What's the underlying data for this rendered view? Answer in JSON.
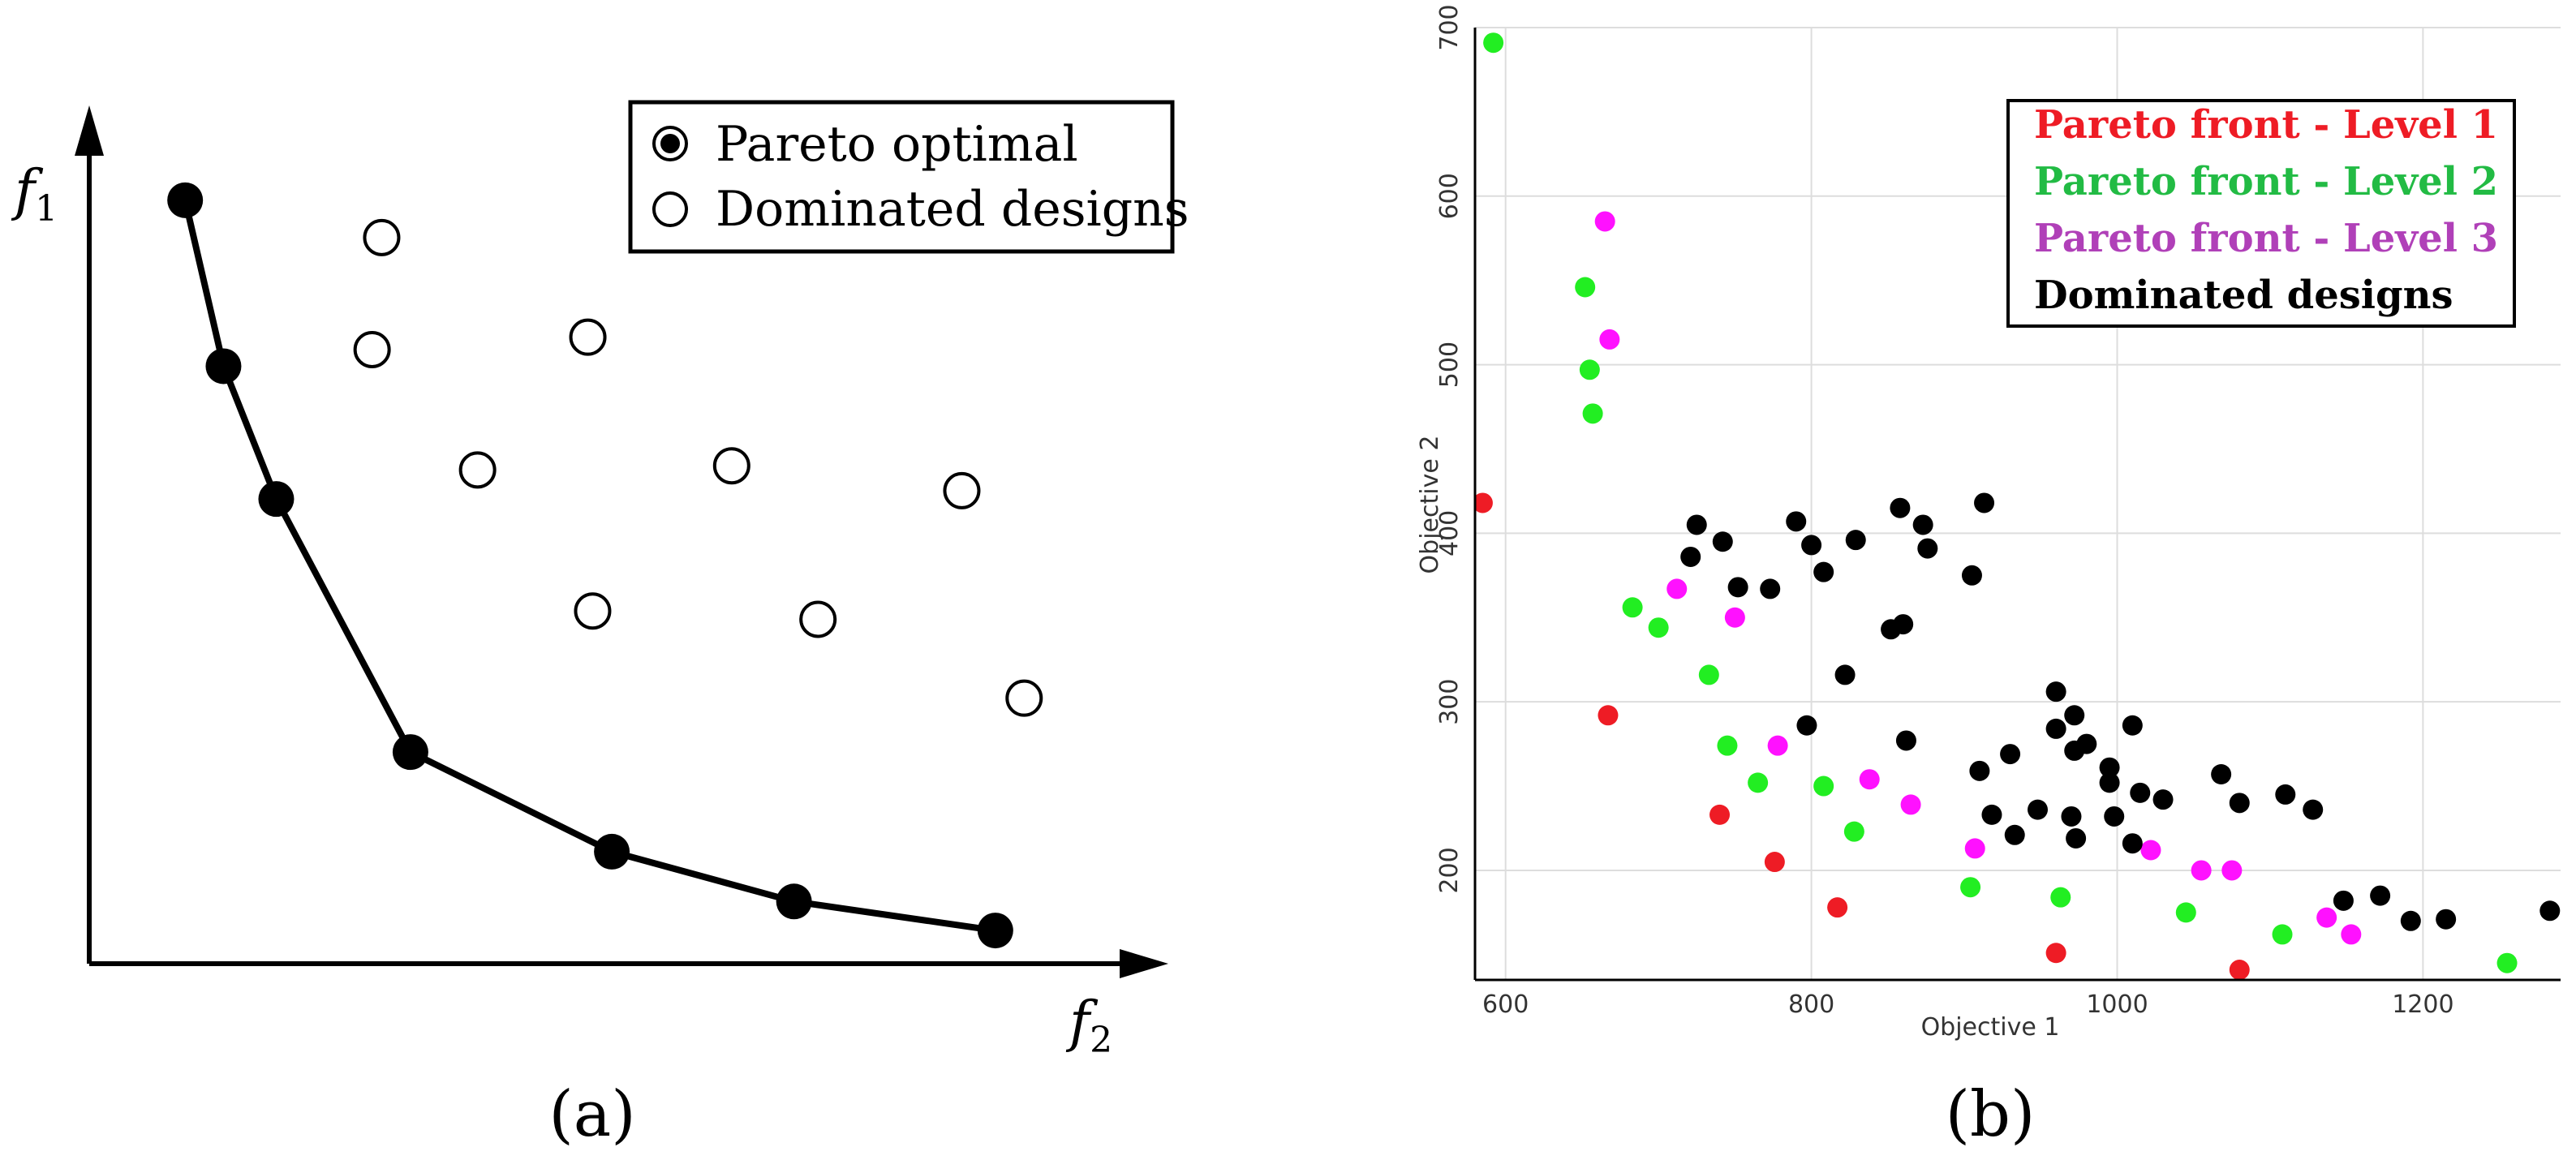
{
  "chart_data": [
    {
      "panel": "(a)",
      "type": "scatter",
      "xlabel": "f",
      "xlabel_sub": "2",
      "ylabel": "f",
      "ylabel_sub": "1",
      "caption": "(a)",
      "legend": [
        "Pareto optimal",
        "Dominated designs"
      ],
      "pareto_points": [
        [
          1.0,
          9.2
        ],
        [
          1.4,
          7.2
        ],
        [
          1.95,
          5.6
        ],
        [
          3.35,
          2.55
        ],
        [
          5.45,
          1.35
        ],
        [
          7.35,
          0.75
        ],
        [
          9.45,
          0.4
        ]
      ],
      "dominated_points": [
        [
          3.05,
          8.75
        ],
        [
          2.95,
          7.4
        ],
        [
          5.2,
          7.55
        ],
        [
          4.05,
          5.95
        ],
        [
          6.7,
          6.0
        ],
        [
          9.1,
          5.7
        ],
        [
          5.25,
          4.25
        ],
        [
          7.6,
          4.15
        ],
        [
          9.75,
          3.2
        ]
      ],
      "xlim": [
        0,
        11
      ],
      "ylim": [
        0,
        10
      ]
    },
    {
      "panel": "(b)",
      "type": "scatter",
      "caption": "(b)",
      "xlabel": "Objective 1",
      "ylabel": "Objective 2",
      "xlim": [
        580,
        1290
      ],
      "ylim": [
        135,
        700
      ],
      "x_ticks": [
        600,
        800,
        1000,
        1200
      ],
      "y_ticks": [
        200,
        300,
        400,
        500,
        600,
        700
      ],
      "grid": true,
      "legend_position": "top-right",
      "series": [
        {
          "name": "Pareto front - Level 1",
          "color": "#ee1c25",
          "points": [
            [
              585,
              418
            ],
            [
              667,
              292
            ],
            [
              740,
              233
            ],
            [
              776,
              205
            ],
            [
              817,
              178
            ],
            [
              960,
              151
            ],
            [
              1080,
              141
            ]
          ]
        },
        {
          "name": "Pareto front - Level 2",
          "color": "#22ee22",
          "points": [
            [
              592,
              691
            ],
            [
              652,
              546
            ],
            [
              655,
              497
            ],
            [
              657,
              471
            ],
            [
              683,
              356
            ],
            [
              700,
              344
            ],
            [
              733,
              316
            ],
            [
              745,
              274
            ],
            [
              765,
              252
            ],
            [
              808,
              250
            ],
            [
              828,
              223
            ],
            [
              904,
              190
            ],
            [
              963,
              184
            ],
            [
              1045,
              175
            ],
            [
              1108,
              162
            ],
            [
              1255,
              145
            ]
          ]
        },
        {
          "name": "Pareto front - Level 3",
          "color": "#ff11ff",
          "points": [
            [
              665,
              585
            ],
            [
              668,
              515
            ],
            [
              712,
              367
            ],
            [
              750,
              350
            ],
            [
              778,
              274
            ],
            [
              838,
              254
            ],
            [
              865,
              239
            ],
            [
              907,
              213
            ],
            [
              1022,
              212
            ],
            [
              1055,
              200
            ],
            [
              1075,
              200
            ],
            [
              1137,
              172
            ],
            [
              1153,
              162
            ]
          ]
        },
        {
          "name": "Dominated designs",
          "color": "#000000",
          "points": [
            [
              725,
              405
            ],
            [
              721,
              386
            ],
            [
              742,
              395
            ],
            [
              752,
              368
            ],
            [
              773,
              367
            ],
            [
              790,
              407
            ],
            [
              800,
              393
            ],
            [
              808,
              377
            ],
            [
              829,
              396
            ],
            [
              858,
              415
            ],
            [
              873,
              405
            ],
            [
              876,
              391
            ],
            [
              905,
              375
            ],
            [
              913,
              418
            ],
            [
              822,
              316
            ],
            [
              797,
              286
            ],
            [
              852,
              343
            ],
            [
              860,
              346
            ],
            [
              862,
              277
            ],
            [
              910,
              259
            ],
            [
              918,
              233
            ],
            [
              930,
              269
            ],
            [
              933,
              221
            ],
            [
              948,
              236
            ],
            [
              960,
              306
            ],
            [
              960,
              284
            ],
            [
              972,
              292
            ],
            [
              972,
              271
            ],
            [
              970,
              232
            ],
            [
              973,
              219
            ],
            [
              980,
              275
            ],
            [
              995,
              261
            ],
            [
              995,
              252
            ],
            [
              998,
              232
            ],
            [
              1010,
              286
            ],
            [
              1010,
              216
            ],
            [
              1015,
              246
            ],
            [
              1030,
              242
            ],
            [
              1068,
              257
            ],
            [
              1080,
              240
            ],
            [
              1110,
              245
            ],
            [
              1128,
              236
            ],
            [
              1148,
              182
            ],
            [
              1172,
              185
            ],
            [
              1192,
              170
            ],
            [
              1215,
              171
            ],
            [
              1283,
              176
            ]
          ]
        }
      ]
    }
  ]
}
